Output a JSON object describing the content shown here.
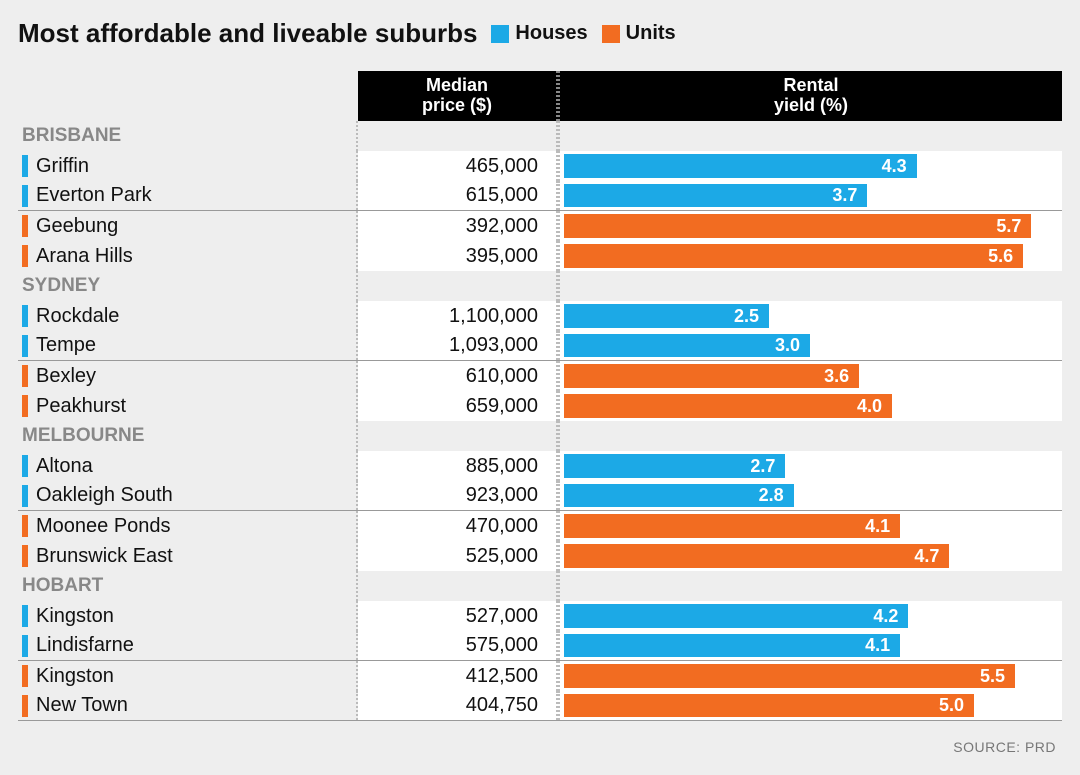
{
  "title": "Most affordable and liveable suburbs",
  "legend": {
    "houses": {
      "label": "Houses",
      "color": "#1ca9e6"
    },
    "units": {
      "label": "Units",
      "color": "#f26c21"
    }
  },
  "headers": {
    "price_l1": "Median",
    "price_l2": "price ($)",
    "yield_l1": "Rental",
    "yield_l2": "yield (%)"
  },
  "chart": {
    "type": "bar",
    "yield_max": 6.0,
    "bar_label_color": "#ffffff",
    "row_bg_color": "#ffffff",
    "page_bg_color": "#eeeeee",
    "header_bg_color": "#000000",
    "city_label_color": "#888888",
    "dotted_border_color": "#bbbbbb",
    "name_fontsize": 20,
    "price_fontsize": 20,
    "bar_fontsize": 18
  },
  "groups": [
    {
      "city": "BRISBANE",
      "rows": [
        {
          "name": "Griffin",
          "price": "465,000",
          "yield": 4.3,
          "type": "houses"
        },
        {
          "name": "Everton Park",
          "price": "615,000",
          "yield": 3.7,
          "type": "houses",
          "divider": true
        },
        {
          "name": "Geebung",
          "price": "392,000",
          "yield": 5.7,
          "type": "units"
        },
        {
          "name": "Arana Hills",
          "price": "395,000",
          "yield": 5.6,
          "type": "units"
        }
      ]
    },
    {
      "city": "SYDNEY",
      "rows": [
        {
          "name": "Rockdale",
          "price": "1,100,000",
          "yield": 2.5,
          "type": "houses"
        },
        {
          "name": "Tempe",
          "price": "1,093,000",
          "yield": 3.0,
          "type": "houses",
          "divider": true
        },
        {
          "name": "Bexley",
          "price": "610,000",
          "yield": 3.6,
          "type": "units"
        },
        {
          "name": "Peakhurst",
          "price": "659,000",
          "yield": 4.0,
          "type": "units"
        }
      ]
    },
    {
      "city": "MELBOURNE",
      "rows": [
        {
          "name": "Altona",
          "price": "885,000",
          "yield": 2.7,
          "type": "houses"
        },
        {
          "name": "Oakleigh South",
          "price": "923,000",
          "yield": 2.8,
          "type": "houses",
          "divider": true
        },
        {
          "name": "Moonee Ponds",
          "price": "470,000",
          "yield": 4.1,
          "type": "units"
        },
        {
          "name": "Brunswick East",
          "price": "525,000",
          "yield": 4.7,
          "type": "units"
        }
      ]
    },
    {
      "city": "HOBART",
      "rows": [
        {
          "name": "Kingston",
          "price": "527,000",
          "yield": 4.2,
          "type": "houses"
        },
        {
          "name": "Lindisfarne",
          "price": "575,000",
          "yield": 4.1,
          "type": "houses",
          "divider": true
        },
        {
          "name": "Kingston",
          "price": "412,500",
          "yield": 5.5,
          "type": "units"
        },
        {
          "name": "New Town",
          "price": "404,750",
          "yield": 5.0,
          "type": "units",
          "last": true
        }
      ]
    }
  ],
  "source": "SOURCE: PRD"
}
